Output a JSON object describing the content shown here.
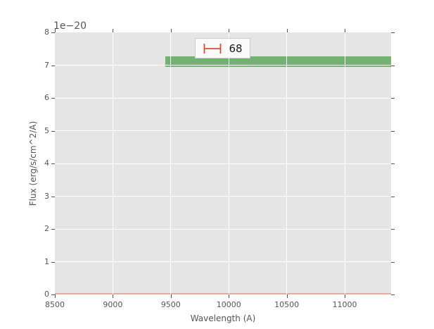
{
  "chart_data": {
    "type": "line",
    "title": "",
    "xlabel": "Wavelength (A)",
    "ylabel": "Flux (erg/s/cm^2/A)",
    "y_offset_text": "1e−20",
    "y_units": "1e-20 erg/s/cm^2/A",
    "xlim": [
      8500,
      11400
    ],
    "ylim": [
      0,
      8
    ],
    "x_ticks": [
      8500,
      9000,
      9500,
      10000,
      10500,
      11000
    ],
    "y_ticks": [
      0,
      1,
      2,
      3,
      4,
      5,
      6,
      7,
      8
    ],
    "grid": true,
    "legend": {
      "position": "upper center",
      "entries": [
        {
          "label": "68",
          "marker": "xerr-errorbar",
          "color": "#e24a33"
        }
      ]
    },
    "series": [
      {
        "name": "flux-confidence-band",
        "style": "band",
        "x_range": [
          9450,
          11400
        ],
        "y_range": [
          6.95,
          7.27
        ],
        "color": "#74b274"
      },
      {
        "name": "error-spectrum-line",
        "style": "hline",
        "y": 0.0,
        "x_range": [
          8500,
          11400
        ],
        "color": "#e3aaa1"
      }
    ],
    "colors": {
      "figure_bg": "#ffffff",
      "axes_bg": "#e5e5e5",
      "grid": "#ffffff",
      "tick_text": "#555555",
      "accent_red": "#e24a33",
      "legend_bg": "#fafafa",
      "legend_border": "#cccccc",
      "legend_text": "#1a1a1a"
    }
  }
}
